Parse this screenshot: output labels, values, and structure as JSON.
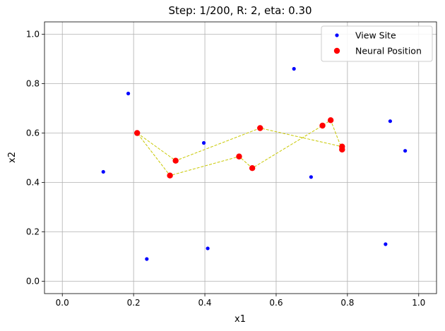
{
  "chart_data": {
    "type": "scatter",
    "title": "Step: 1/200, R: 2, eta: 0.30",
    "xlabel": "x1",
    "ylabel": "x2",
    "xlim": [
      -0.05,
      1.05
    ],
    "ylim": [
      -0.05,
      1.05
    ],
    "xticks": [
      "0.0",
      "0.2",
      "0.4",
      "0.6",
      "0.8",
      "1.0"
    ],
    "yticks": [
      "0.0",
      "0.2",
      "0.4",
      "0.6",
      "0.8",
      "1.0"
    ],
    "grid": true,
    "legend_position": "top-right",
    "series": [
      {
        "name": "View Site",
        "color": "#0000ff",
        "marker": "small-dot",
        "points": [
          [
            0.185,
            0.76
          ],
          [
            0.65,
            0.86
          ],
          [
            0.115,
            0.443
          ],
          [
            0.397,
            0.56
          ],
          [
            0.698,
            0.422
          ],
          [
            0.92,
            0.648
          ],
          [
            0.962,
            0.528
          ],
          [
            0.237,
            0.09
          ],
          [
            0.408,
            0.133
          ],
          [
            0.907,
            0.15
          ]
        ]
      },
      {
        "name": "Neural Position",
        "color": "#ff0000",
        "marker": "large-dot",
        "points": [
          [
            0.21,
            0.6
          ],
          [
            0.318,
            0.488
          ],
          [
            0.302,
            0.428
          ],
          [
            0.496,
            0.505
          ],
          [
            0.533,
            0.458
          ],
          [
            0.555,
            0.62
          ],
          [
            0.73,
            0.63
          ],
          [
            0.753,
            0.652
          ],
          [
            0.785,
            0.545
          ],
          [
            0.785,
            0.533
          ]
        ]
      }
    ],
    "path": {
      "color": "#c8c800",
      "style": "dashed",
      "points": [
        [
          0.21,
          0.6
        ],
        [
          0.318,
          0.488
        ],
        [
          0.555,
          0.62
        ],
        [
          0.785,
          0.545
        ],
        [
          0.785,
          0.533
        ],
        [
          0.753,
          0.652
        ],
        [
          0.73,
          0.63
        ],
        [
          0.533,
          0.458
        ],
        [
          0.496,
          0.505
        ],
        [
          0.302,
          0.428
        ],
        [
          0.21,
          0.6
        ]
      ]
    }
  }
}
